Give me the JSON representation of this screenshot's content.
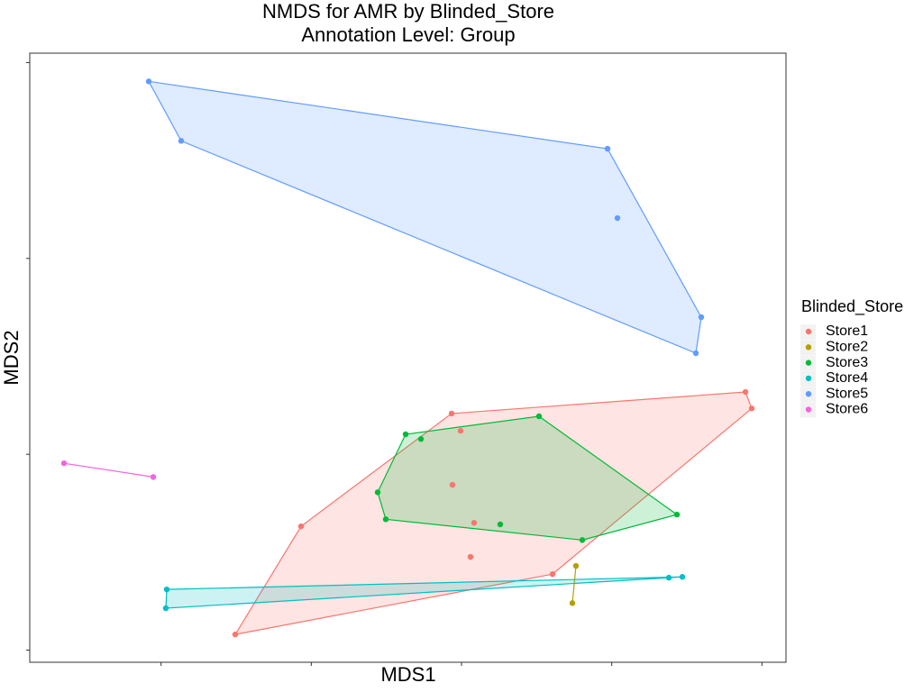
{
  "chart_data": {
    "type": "scatter",
    "title": "NMDS for AMR by Blinded_Store",
    "subtitle": "Annotation Level: Group",
    "x_label": "MDS1",
    "y_label": "MDS2",
    "legend_title": "Blinded_Store",
    "legend_position": "right",
    "hulls": true,
    "xlim": [
      -1.437,
      1.08
    ],
    "ylim": [
      -0.531,
      1.024
    ],
    "xticks": [
      -1,
      -0.5,
      0,
      0.5,
      1
    ],
    "yticks": [
      -0.5,
      0,
      0.5,
      1
    ],
    "series": [
      {
        "name": "Store1",
        "color": "#F8766D",
        "x": [
          -0.753,
          -0.534,
          -0.033,
          0.945,
          0.966,
          0.303,
          -0.003,
          -0.03,
          0.042,
          0.03
        ],
        "values": [
          -0.46,
          -0.184,
          0.104,
          0.159,
          0.117,
          -0.306,
          0.06,
          -0.078,
          -0.175,
          -0.262
        ]
      },
      {
        "name": "Store2",
        "color": "#B79F00",
        "x": [
          0.381,
          0.369
        ],
        "values": [
          -0.285,
          -0.38
        ]
      },
      {
        "name": "Store3",
        "color": "#00BA38",
        "x": [
          -0.186,
          -0.135,
          0.258,
          0.717,
          0.402,
          -0.252,
          -0.279,
          0.129
        ],
        "values": [
          0.051,
          0.039,
          0.097,
          -0.154,
          -0.219,
          -0.166,
          -0.097,
          -0.179
        ]
      },
      {
        "name": "Store4",
        "color": "#00BFC4",
        "x": [
          -0.981,
          -0.984,
          0.69,
          0.735
        ],
        "values": [
          -0.345,
          -0.393,
          -0.315,
          -0.313
        ]
      },
      {
        "name": "Store5",
        "color": "#619CFF",
        "x": [
          -1.041,
          -0.933,
          0.486,
          0.519,
          0.798,
          0.78
        ],
        "values": [
          0.952,
          0.8,
          0.78,
          0.603,
          0.35,
          0.258
        ]
      },
      {
        "name": "Store6",
        "color": "#F564E3",
        "x": [
          -1.323,
          -1.026
        ],
        "values": [
          -0.023,
          -0.058
        ]
      }
    ]
  }
}
